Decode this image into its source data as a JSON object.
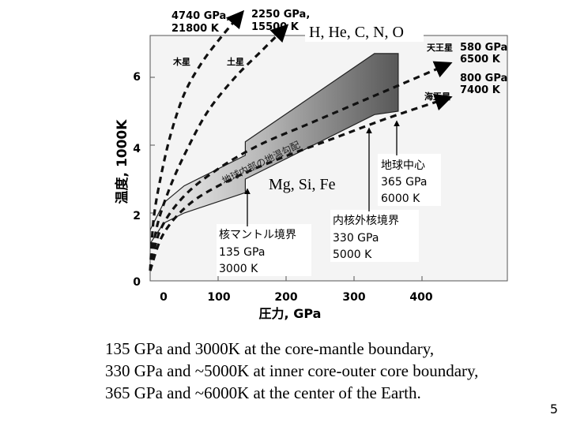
{
  "chart_data": {
    "type": "line",
    "xlabel": "圧力, GPa",
    "ylabel": "温度, 1000K",
    "xlim": [
      0,
      400
    ],
    "ylim": [
      0,
      7
    ],
    "x_ticks": [
      "0",
      "100",
      "200",
      "300",
      "400"
    ],
    "y_ticks": [
      "0",
      "2",
      "4",
      "6"
    ],
    "series": [
      {
        "name": "木星",
        "style": "dashed",
        "x": [
          0,
          5,
          15,
          30,
          50,
          75,
          105,
          135
        ],
        "y": [
          0.3,
          1.8,
          3.0,
          4.3,
          5.5,
          6.4,
          7.2,
          7.9
        ]
      },
      {
        "name": "土星",
        "style": "dashed",
        "x": [
          0,
          10,
          30,
          55,
          85,
          125,
          165,
          200
        ],
        "y": [
          0.3,
          1.6,
          2.8,
          3.9,
          5.0,
          6.0,
          6.8,
          7.5
        ]
      },
      {
        "name": "天王星",
        "style": "dashed",
        "x": [
          0,
          15,
          50,
          100,
          160,
          230,
          300,
          370,
          440
        ],
        "y": [
          0.3,
          1.5,
          2.5,
          3.3,
          4.0,
          4.6,
          5.2,
          5.8,
          6.4
        ]
      },
      {
        "name": "海王星",
        "style": "dashed",
        "x": [
          0,
          20,
          60,
          120,
          190,
          270,
          350,
          440
        ],
        "y": [
          0.3,
          1.4,
          2.3,
          3.0,
          3.6,
          4.2,
          4.8,
          5.4
        ]
      }
    ],
    "geotherm_band": {
      "label": "地球内部の地温勾配",
      "upper": {
        "x": [
          0,
          20,
          50,
          140,
          140,
          330,
          365
        ],
        "y": [
          1.5,
          2.3,
          2.8,
          3.7,
          4.1,
          6.7,
          6.7
        ]
      },
      "lower": {
        "x": [
          0,
          20,
          50,
          140,
          140,
          330,
          365
        ],
        "y": [
          1.1,
          1.7,
          2.0,
          2.6,
          3.0,
          4.9,
          5.0
        ]
      }
    },
    "planet_labels": [
      {
        "text": "木星"
      },
      {
        "text": "土星"
      },
      {
        "text": "天王星"
      },
      {
        "text": "海王星"
      }
    ],
    "top_annotations": [
      {
        "line1": "4740 GPa,",
        "line2": "21800 K"
      },
      {
        "line1": "2250 GPa,",
        "line2": "15500 K"
      }
    ],
    "right_annotations": [
      {
        "line1": "580 GPa",
        "line2": "6500 K"
      },
      {
        "line1": "800 GPa",
        "line2": "7400 K"
      }
    ],
    "element_labels": {
      "gas": "H, He, C, N, O",
      "rock": "Mg, Si, Fe"
    },
    "boundary_annotations": [
      {
        "lines": [
          "核マントル境界",
          "135 GPa",
          "3000 K"
        ]
      },
      {
        "lines": [
          "内核外核境界",
          "330 GPa",
          "5000 K"
        ]
      },
      {
        "lines": [
          "地球中心",
          "365 GPa",
          "6000 K"
        ]
      }
    ]
  },
  "caption": {
    "lines": [
      "135 GPa and 3000K at the core-mantle boundary,",
      "330 GPa and ~5000K at inner core-outer core boundary,",
      "365 GPa and ~6000K at the center of the Earth."
    ]
  },
  "page_number": "5"
}
